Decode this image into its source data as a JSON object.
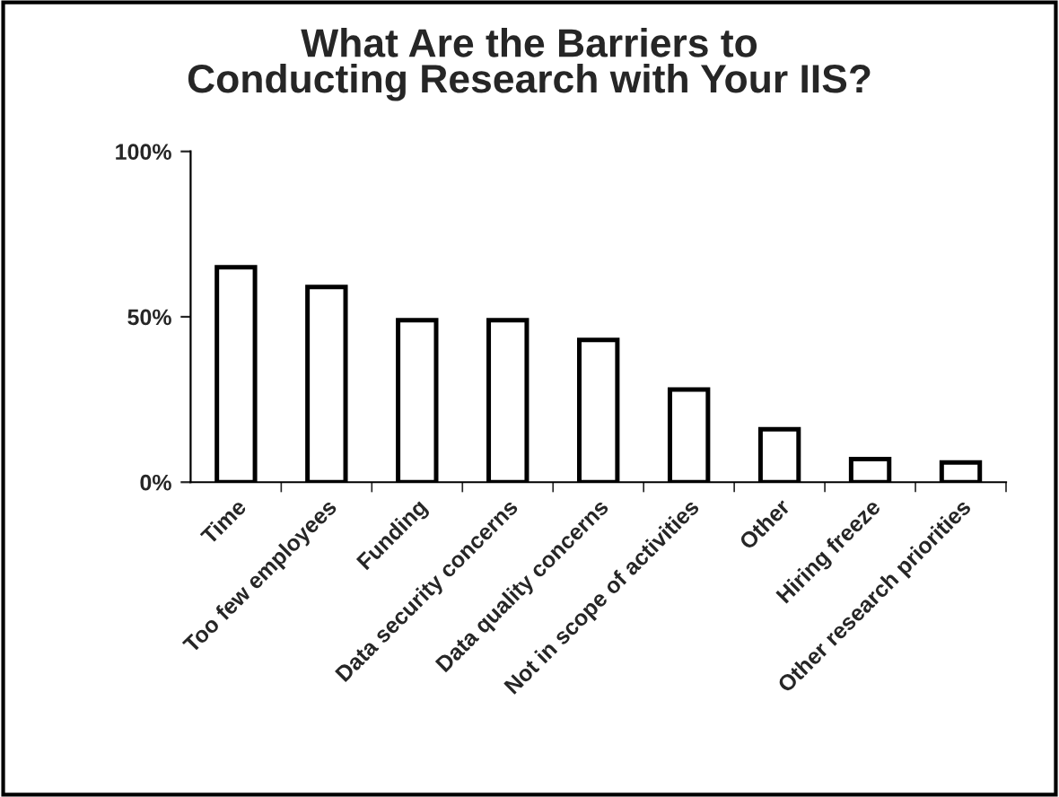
{
  "chart_data": {
    "type": "bar",
    "title": "What Are the Barriers to\nConducting Research with Your IIS?",
    "categories": [
      "Time",
      "Too few employees",
      "Funding",
      "Data security concerns",
      "Data quality concerns",
      "Not in scope of activities",
      "Other",
      "Hiring freeze",
      "Other research priorities"
    ],
    "values": [
      65,
      59,
      49,
      49,
      43,
      28,
      16,
      7,
      6
    ],
    "color": "#ffffff",
    "ylim": [
      0,
      100
    ],
    "yticks": [
      {
        "value": 0,
        "label": "0%"
      },
      {
        "value": 50,
        "label": "50%"
      },
      {
        "value": 100,
        "label": "100%"
      }
    ],
    "grid": false
  }
}
